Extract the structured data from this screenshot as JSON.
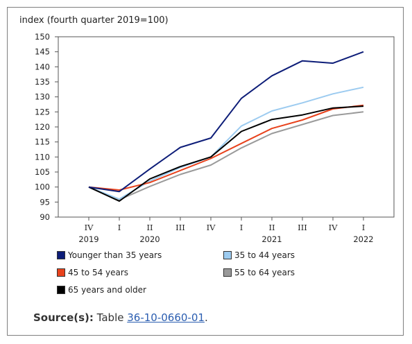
{
  "chart_data": {
    "type": "line",
    "ylabel": "index (fourth quarter 2019=100)",
    "ylim": [
      90,
      150
    ],
    "yticks": [
      90,
      95,
      100,
      105,
      110,
      115,
      120,
      125,
      130,
      135,
      140,
      145,
      150
    ],
    "categories": [
      "IV",
      "I",
      "II",
      "III",
      "IV",
      "I",
      "II",
      "III",
      "IV",
      "I"
    ],
    "year_labels": [
      {
        "index": 0,
        "label": "2019"
      },
      {
        "index": 2,
        "label": "2020"
      },
      {
        "index": 6,
        "label": "2021"
      },
      {
        "index": 9,
        "label": "2022"
      }
    ],
    "grid": false,
    "legend_position": "bottom",
    "series": [
      {
        "name": "Younger than 35 years",
        "color": "#0d1d78",
        "values": [
          100,
          98.5,
          106,
          113.2,
          116.3,
          129.5,
          137,
          142,
          141.2,
          145
        ]
      },
      {
        "name": "35 to 44 years",
        "color": "#9ccbf0",
        "values": [
          100,
          96,
          102,
          106.5,
          110,
          120.3,
          125.3,
          128,
          131,
          133.2
        ]
      },
      {
        "name": "45 to 54 years",
        "color": "#e8421c",
        "values": [
          100,
          99,
          101.5,
          105.5,
          109.5,
          114.5,
          119.5,
          122.3,
          126,
          127.2
        ]
      },
      {
        "name": "55 to 64 years",
        "color": "#9a9a9a",
        "values": [
          100,
          95.8,
          100.2,
          104.2,
          107.3,
          113,
          117.8,
          120.8,
          123.8,
          125
        ]
      },
      {
        "name": "65 years and older",
        "color": "#000000",
        "values": [
          100,
          95.3,
          102.7,
          106.8,
          110,
          118.5,
          122.5,
          124,
          126.3,
          126.9
        ]
      }
    ]
  },
  "source": {
    "label": "Source(s):",
    "text": "Table",
    "link": "36-10-0660-01",
    "suffix": "."
  }
}
